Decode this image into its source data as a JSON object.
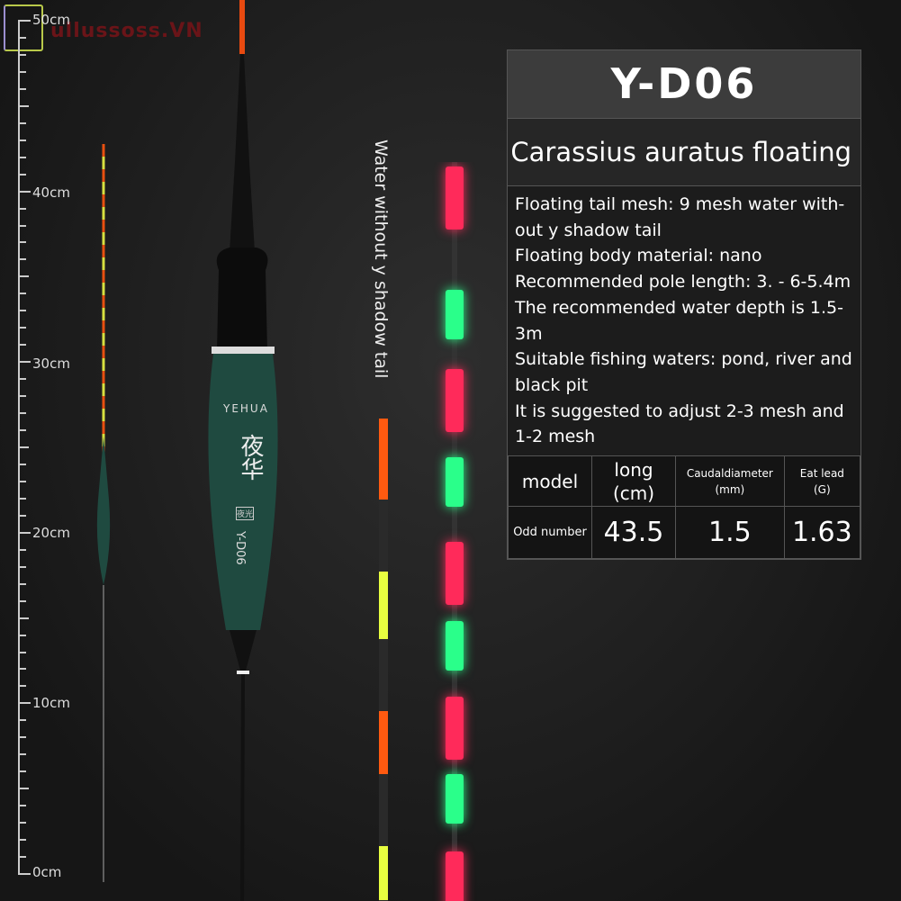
{
  "watermark": "ullussoss.VN",
  "ruler": {
    "labels": [
      "50cm",
      "40cm",
      "30cm",
      "20cm",
      "10cm",
      "0cm"
    ]
  },
  "float": {
    "brand": "YEHUA",
    "chinese_name": "夜华",
    "chinese_tag": "夜光",
    "model": "Y-D06",
    "body_color": "#1f4a40"
  },
  "tail_caption": "Water without y shadow tail",
  "panel": {
    "title": "Y-D06",
    "subtitle": "Carassius auratus floating",
    "specs": [
      "Floating tail mesh: 9 mesh water with-out y shadow tail",
      "Floating body material: nano",
      "Recommended pole length: 3. - 6-5.4m",
      "The recommended water depth is 1.5-3m",
      "Suitable fishing waters: pond, river and black pit",
      "It is suggested to adjust 2-3 mesh and 1-2 mesh"
    ],
    "table": {
      "headers": [
        {
          "main": "model",
          "sub": ""
        },
        {
          "main": "long",
          "sub": "(cm)"
        },
        {
          "main": "Caudaldiameter",
          "sub": "(mm)"
        },
        {
          "main": "Eat lead",
          "sub": "(G)"
        }
      ],
      "row": [
        "Odd number",
        "43.5",
        "1.5",
        "1.63"
      ]
    }
  },
  "colors": {
    "glow_red": "#ff2a5a",
    "glow_green": "#2aff8a",
    "tail_orange": "#ff5a10",
    "tail_yellow": "#e8ff40"
  }
}
